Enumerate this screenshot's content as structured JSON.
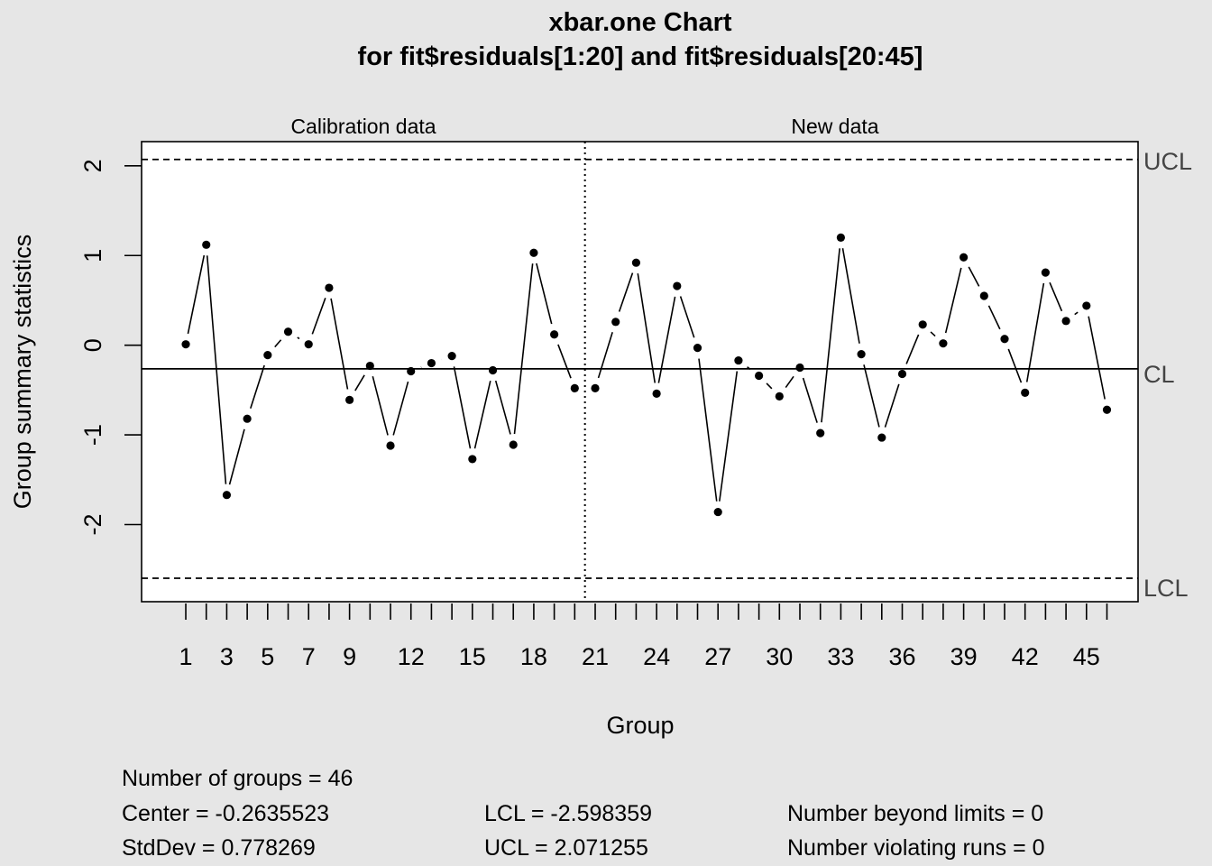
{
  "chart_data": {
    "type": "line",
    "title": "xbar.one Chart",
    "subtitle": "for fit$residuals[1:20] and fit$residuals[20:45]",
    "xlabel": "Group",
    "ylabel": "Group summary statistics",
    "segments": [
      "Calibration data",
      "New data"
    ],
    "calibration_groups": 20,
    "x": [
      1,
      2,
      3,
      4,
      5,
      6,
      7,
      8,
      9,
      10,
      11,
      12,
      13,
      14,
      15,
      16,
      17,
      18,
      19,
      20,
      21,
      22,
      23,
      24,
      25,
      26,
      27,
      28,
      29,
      30,
      31,
      32,
      33,
      34,
      35,
      36,
      37,
      38,
      39,
      40,
      41,
      42,
      43,
      44,
      45,
      46
    ],
    "values": [
      0.01,
      1.12,
      -1.67,
      -0.82,
      -0.11,
      0.15,
      0.01,
      0.64,
      -0.61,
      -0.23,
      -1.12,
      -0.29,
      -0.2,
      -0.12,
      -1.27,
      -0.28,
      -1.11,
      1.03,
      0.12,
      -0.48,
      -0.48,
      0.26,
      0.92,
      -0.54,
      0.66,
      -0.03,
      -1.86,
      -0.17,
      -0.34,
      -0.57,
      -0.25,
      -0.98,
      1.2,
      -0.1,
      -1.03,
      -0.32,
      0.23,
      0.02,
      0.98,
      0.55,
      0.07,
      -0.53,
      0.81,
      0.27,
      0.44,
      -0.72
    ],
    "x_tick_labels": [
      "1",
      "3",
      "5",
      "7",
      "9",
      "12",
      "15",
      "18",
      "21",
      "24",
      "27",
      "30",
      "33",
      "36",
      "39",
      "42",
      "45"
    ],
    "x_tick_values": [
      1,
      3,
      5,
      7,
      9,
      12,
      15,
      18,
      21,
      24,
      27,
      30,
      33,
      36,
      39,
      42,
      45
    ],
    "y_ticks": [
      -2,
      -1,
      0,
      1,
      2
    ],
    "y_tick_labels": [
      "-2",
      "-1",
      "0",
      "1",
      "2"
    ],
    "ylim": [
      -2.86,
      2.27
    ],
    "xlim": [
      -1.16,
      47.52
    ],
    "center": -0.2635523,
    "ucl": 2.071255,
    "lcl": -2.598359,
    "line_labels": {
      "ucl": "UCL",
      "cl": "CL",
      "lcl": "LCL"
    },
    "grid": false
  },
  "stats": {
    "groups": "Number of groups = 46",
    "center": "Center = -0.2635523",
    "stddev": "StdDev = 0.778269",
    "lcl": "LCL = -2.598359",
    "ucl": "UCL = 2.071255",
    "beyond": "Number beyond limits = 0",
    "runs": "Number violating runs = 0"
  }
}
